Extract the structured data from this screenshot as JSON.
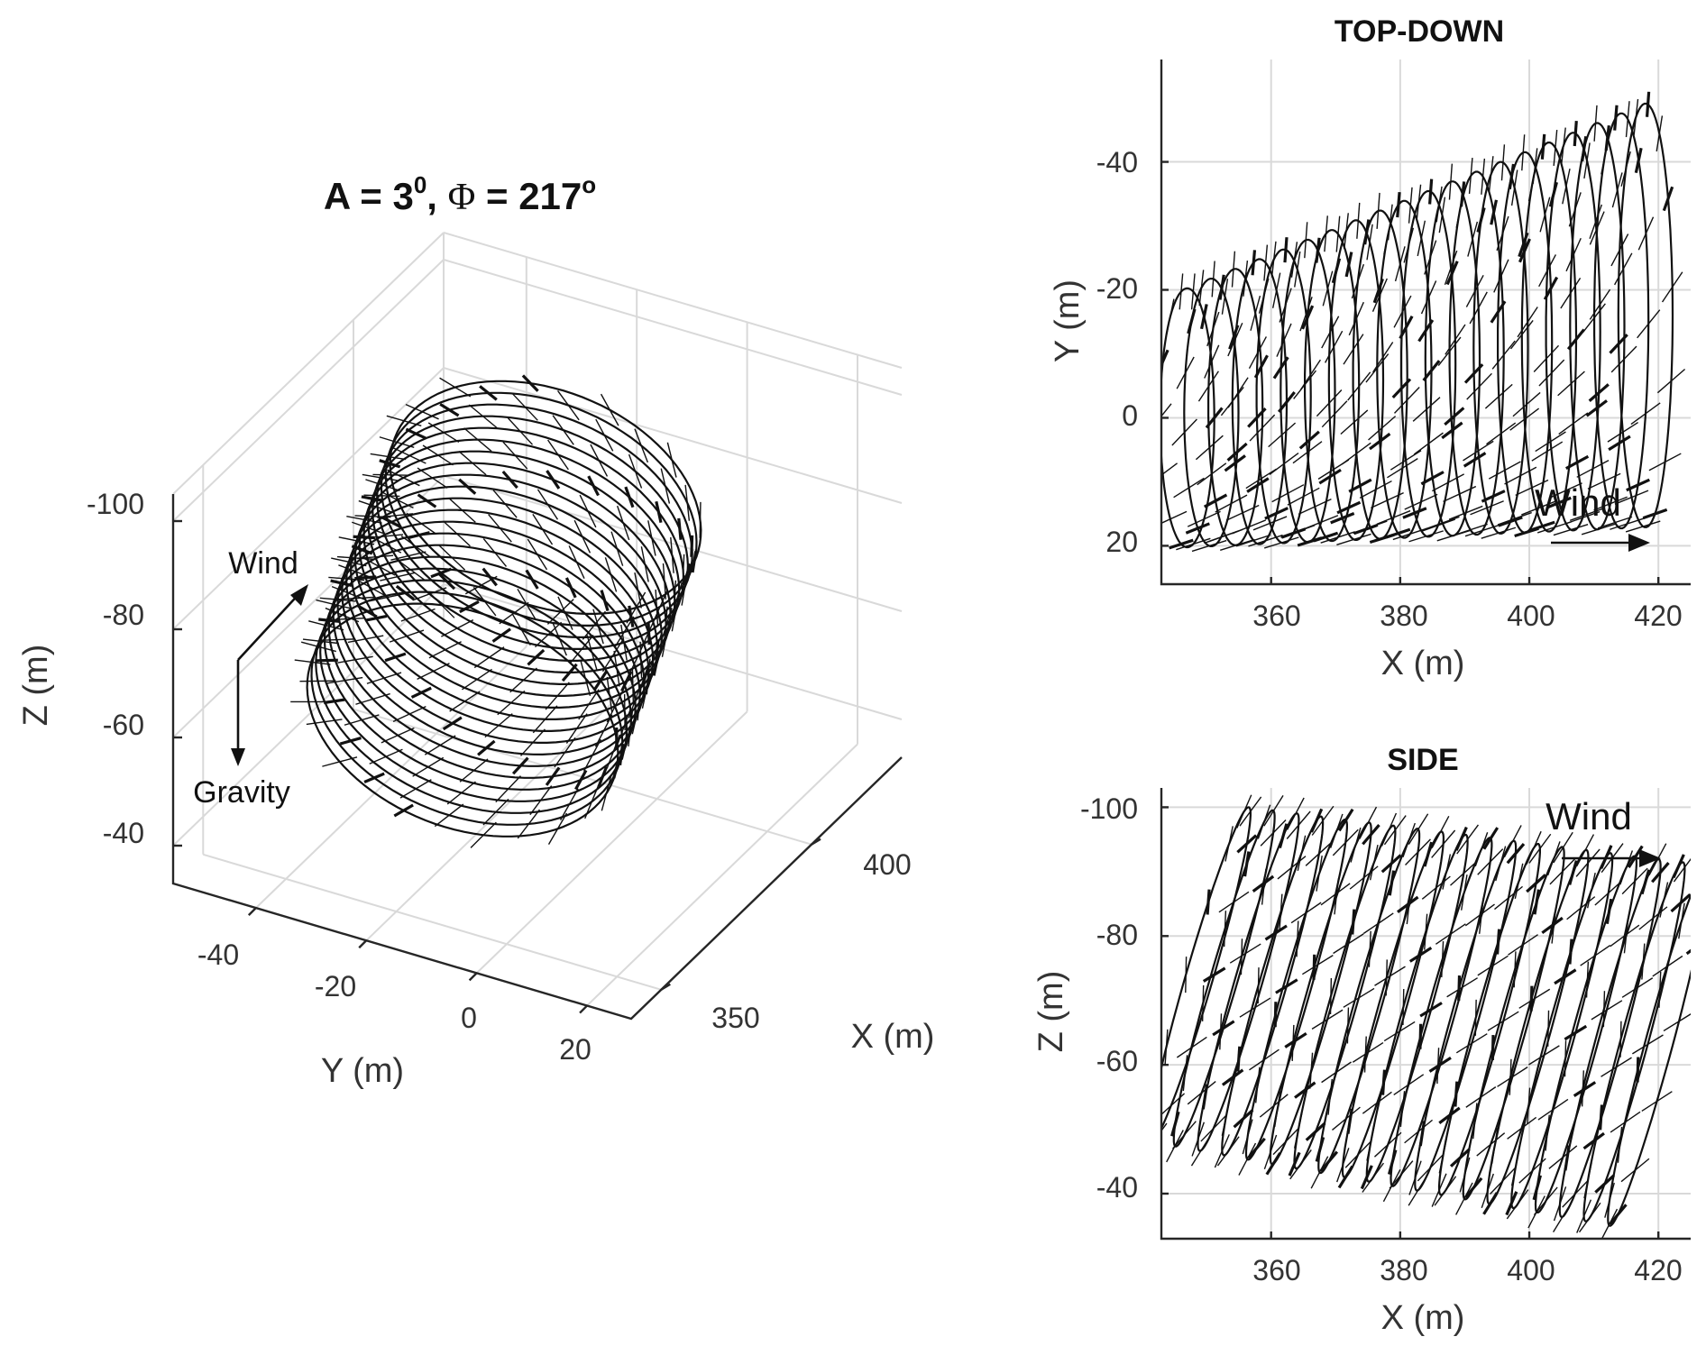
{
  "figure": {
    "main_title_parts": {
      "a": "A = 3",
      "a_sup": "0",
      "mid": ", ",
      "phi": "Φ",
      "eq": " = 217",
      "deg": "o"
    }
  },
  "chart_data": [
    {
      "id": "panel-3d",
      "type": "line",
      "projection": "3d",
      "title": "A = 3⁰, Φ = 217°",
      "xlabel": "X (m)",
      "ylabel": "Y (m)",
      "zlabel": "Z (m)",
      "xticks": [
        "350",
        "400"
      ],
      "xlim": [
        340,
        430
      ],
      "yticks": [
        "-40",
        "-20",
        "0",
        "20"
      ],
      "ylim": [
        -55,
        28
      ],
      "zticks": [
        "-100",
        "-80",
        "-60",
        "-40"
      ],
      "zlim": [
        -105,
        -33
      ],
      "z_direction": "reversed",
      "grid": true,
      "annotations": [
        "Wind",
        "Gravity"
      ],
      "series": [
        {
          "description_values": {
            "loops": 20,
            "x_start": 345,
            "x_end": 420,
            "y_center_start": 0,
            "y_center_end": -28,
            "y_radius": 22,
            "z_center_start": -72,
            "z_center_end": -70,
            "z_radius": 24
          }
        }
      ]
    },
    {
      "id": "panel-top",
      "type": "line",
      "title": "TOP-DOWN",
      "xlabel": "X (m)",
      "ylabel": "Y (m)",
      "xticks": [
        "360",
        "380",
        "400",
        "420"
      ],
      "xlim": [
        343,
        425
      ],
      "yticks": [
        "-40",
        "-20",
        "0",
        "20"
      ],
      "ylim": [
        -56,
        26
      ],
      "y_direction": "reversed",
      "grid": true,
      "annotation": "Wind",
      "series": [
        {
          "loops": 20,
          "x_start": 343,
          "x_end": 422,
          "y_center_start": 0,
          "y_center_end": -16,
          "y_radius_start": 22,
          "y_radius_end": 36
        }
      ]
    },
    {
      "id": "panel-side",
      "type": "line",
      "title": "SIDE",
      "xlabel": "X (m)",
      "ylabel": "Z (m)",
      "xticks": [
        "360",
        "380",
        "400",
        "420"
      ],
      "xlim": [
        343,
        425
      ],
      "yticks": [
        "-100",
        "-80",
        "-60",
        "-40"
      ],
      "ylim": [
        -103,
        -33
      ],
      "y_direction": "reversed",
      "grid": true,
      "annotation": "Wind",
      "series": [
        {
          "loops": 20,
          "x_start": 343,
          "x_end": 422,
          "z_top_start": -100,
          "z_top_end": -91,
          "z_bottom_start": -48,
          "z_bottom_end": -35
        }
      ]
    }
  ],
  "labels3d": {
    "x": "X (m)",
    "y": "Y (m)",
    "z": "Z (m)",
    "xticks": [
      "350",
      "400"
    ],
    "yticks": [
      "-40",
      "-20",
      "0",
      "20"
    ],
    "zticks": [
      "-100",
      "-80",
      "-60",
      "-40"
    ],
    "wind": "Wind",
    "gravity": "Gravity"
  },
  "top": {
    "title": "TOP-DOWN",
    "xlabel": "X (m)",
    "ylabel": "Y (m)",
    "xticks": [
      "360",
      "380",
      "400",
      "420"
    ],
    "yticks": [
      "-40",
      "-20",
      "0",
      "20"
    ],
    "wind": "Wind"
  },
  "side": {
    "title": "SIDE",
    "xlabel": "X (m)",
    "ylabel": "Z (m)",
    "xticks": [
      "360",
      "380",
      "400",
      "420"
    ],
    "yticks": [
      "-100",
      "-80",
      "-60",
      "-40"
    ],
    "wind": "Wind"
  },
  "colors": {
    "line": "#111111",
    "grid": "#d9d9d9",
    "axis": "#262626",
    "text": "#333333"
  }
}
